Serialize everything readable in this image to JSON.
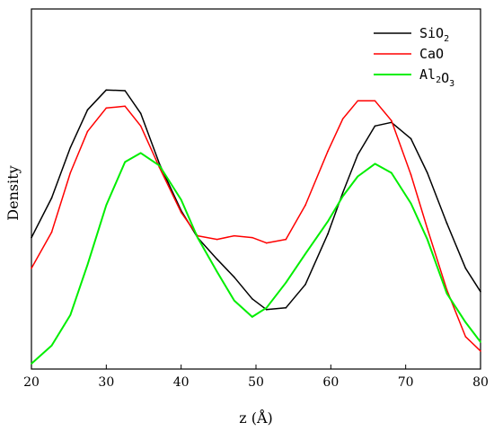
{
  "chart_data": {
    "type": "line",
    "title": "",
    "xlabel": "z (Å)",
    "ylabel": "Density",
    "xlim": [
      20,
      80
    ],
    "xticks": [
      20,
      30,
      40,
      50,
      60,
      70,
      80
    ],
    "ylim": [
      0,
      1
    ],
    "yticks_shown": false,
    "grid": false,
    "legend_position": "top-right",
    "series": [
      {
        "name": "SiO2",
        "legend_main": "SiO",
        "legend_sub": "2",
        "color": "#000000",
        "x": [
          20,
          22.7,
          25.2,
          27.5,
          30,
          32.5,
          34.6,
          37.1,
          40,
          42.2,
          44.8,
          47.1,
          49.5,
          51.4,
          54,
          56.6,
          59.6,
          61.6,
          63.6,
          65.9,
          68.1,
          70.7,
          72.9,
          75.5,
          78,
          80
        ],
        "y": [
          0.365,
          0.475,
          0.615,
          0.72,
          0.775,
          0.773,
          0.71,
          0.57,
          0.44,
          0.365,
          0.305,
          0.255,
          0.195,
          0.165,
          0.17,
          0.235,
          0.375,
          0.49,
          0.595,
          0.675,
          0.685,
          0.64,
          0.545,
          0.405,
          0.28,
          0.215
        ]
      },
      {
        "name": "CaO",
        "legend_main": "CaO",
        "legend_sub": "",
        "color": "#ff0000",
        "x": [
          20,
          22.7,
          25.2,
          27.5,
          30,
          32.5,
          34.6,
          37.1,
          40,
          42.2,
          44.8,
          47.1,
          49.5,
          51.4,
          54,
          56.6,
          59.6,
          61.6,
          63.6,
          65.9,
          68.1,
          70.7,
          72.9,
          75.5,
          78,
          80
        ],
        "y": [
          0.28,
          0.38,
          0.545,
          0.66,
          0.725,
          0.73,
          0.675,
          0.56,
          0.435,
          0.37,
          0.36,
          0.37,
          0.365,
          0.35,
          0.36,
          0.455,
          0.605,
          0.695,
          0.745,
          0.745,
          0.69,
          0.54,
          0.39,
          0.22,
          0.09,
          0.05
        ]
      },
      {
        "name": "Al2O3",
        "legend_main": "Al",
        "legend_mid": "O",
        "legend_sub": "2",
        "legend_sub2": "3",
        "color": "#00ee00",
        "x": [
          20,
          22.7,
          25.2,
          27.5,
          30,
          32.5,
          34.6,
          37.1,
          40,
          42.2,
          44.8,
          47.1,
          49.5,
          51.4,
          54,
          56.6,
          59.6,
          61.6,
          63.6,
          65.9,
          68.1,
          70.7,
          72.9,
          75.5,
          78,
          80
        ],
        "y": [
          0.015,
          0.065,
          0.15,
          0.29,
          0.455,
          0.575,
          0.6,
          0.565,
          0.47,
          0.365,
          0.27,
          0.19,
          0.145,
          0.17,
          0.24,
          0.32,
          0.41,
          0.48,
          0.535,
          0.57,
          0.545,
          0.46,
          0.36,
          0.21,
          0.13,
          0.075
        ]
      }
    ]
  }
}
